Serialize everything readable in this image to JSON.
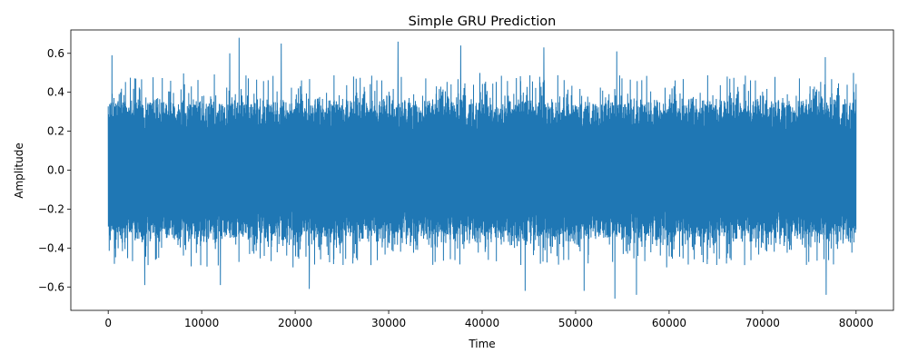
{
  "chart_data": {
    "type": "line",
    "title": "Simple GRU Prediction",
    "xlabel": "Time",
    "ylabel": "Amplitude",
    "xlim": [
      -4000,
      84000
    ],
    "ylim": [
      -0.72,
      0.72
    ],
    "xticks": [
      0,
      10000,
      20000,
      30000,
      40000,
      50000,
      60000,
      70000,
      80000
    ],
    "yticks": [
      -0.6,
      -0.4,
      -0.2,
      0.0,
      0.2,
      0.4,
      0.6
    ],
    "ytick_labels": [
      "−0.6",
      "−0.4",
      "−0.2",
      "0.0",
      "0.2",
      "0.4",
      "0.6"
    ],
    "grid": false,
    "series": [
      {
        "color": "#1f77b4",
        "x_range": [
          0,
          80000
        ],
        "envelope_typical": [
          -0.38,
          0.38
        ],
        "peaks": [
          {
            "x": 400,
            "y": 0.59
          },
          {
            "x": 3900,
            "y": -0.59
          },
          {
            "x": 12000,
            "y": -0.59
          },
          {
            "x": 13000,
            "y": 0.6
          },
          {
            "x": 14000,
            "y": 0.68
          },
          {
            "x": 18500,
            "y": 0.65
          },
          {
            "x": 21500,
            "y": -0.61
          },
          {
            "x": 31000,
            "y": 0.66
          },
          {
            "x": 37700,
            "y": 0.64
          },
          {
            "x": 44600,
            "y": -0.62
          },
          {
            "x": 46600,
            "y": 0.63
          },
          {
            "x": 50900,
            "y": -0.62
          },
          {
            "x": 54200,
            "y": -0.66
          },
          {
            "x": 54400,
            "y": 0.61
          },
          {
            "x": 56500,
            "y": -0.64
          },
          {
            "x": 76800,
            "y": -0.64
          },
          {
            "x": 76700,
            "y": 0.58
          }
        ]
      }
    ]
  }
}
